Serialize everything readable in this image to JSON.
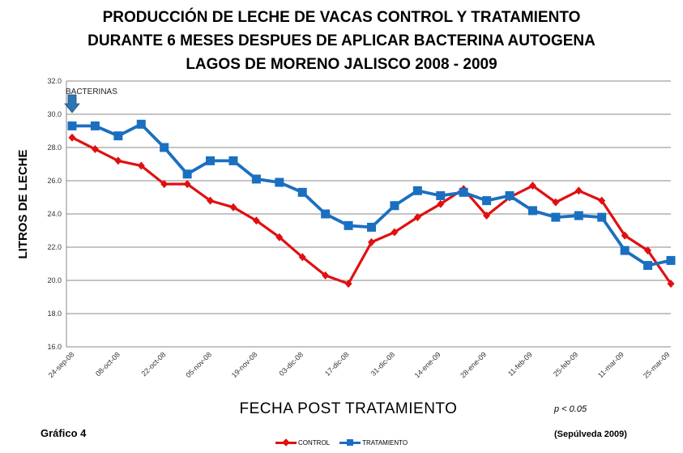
{
  "chart_data": {
    "type": "line",
    "title_lines": [
      "PRODUCCIÓN DE LECHE DE VACAS CONTROL Y TRATAMIENTO",
      "DURANTE 6 MESES DESPUES DE APLICAR BACTERINA AUTOGENA",
      "LAGOS DE MORENO JALISCO 2008 - 2009"
    ],
    "xlabel": "FECHA POST TRATAMIENTO",
    "ylabel": "LITROS DE LECHE",
    "ylim": [
      16.0,
      32.0
    ],
    "y_ticks": [
      "16.0",
      "18.0",
      "20.0",
      "22.0",
      "24.0",
      "26.0",
      "28.0",
      "30.0",
      "32.0"
    ],
    "grid": true,
    "legend_position": "bottom",
    "x_tick_labels": [
      "24-sep-08",
      "08-oct-08",
      "22-oct-08",
      "05-nov-08",
      "19-nov-08",
      "03-dic-08",
      "17-dic-08",
      "31-dic-08",
      "14-ene-09",
      "28-ene-09",
      "11-feb-09",
      "25-feb-09",
      "11-mar-09",
      "25-mar-09"
    ],
    "series": [
      {
        "name": "CONTROL",
        "color": "#e01010",
        "marker": "diamond",
        "values": [
          28.6,
          27.9,
          27.2,
          26.9,
          25.8,
          25.8,
          24.8,
          24.4,
          23.6,
          22.6,
          21.4,
          20.3,
          19.8,
          22.3,
          22.9,
          23.8,
          24.6,
          25.5,
          23.9,
          25.0,
          25.7,
          24.7,
          25.4,
          24.8,
          22.7,
          21.8,
          19.8
        ]
      },
      {
        "name": "TRATAMIENTO",
        "color": "#1a6fc0",
        "marker": "square",
        "values": [
          29.3,
          29.3,
          28.7,
          29.4,
          28.0,
          26.4,
          27.2,
          27.2,
          26.1,
          25.9,
          25.3,
          24.0,
          23.3,
          23.2,
          24.5,
          25.4,
          25.1,
          25.3,
          24.8,
          25.1,
          24.2,
          23.8,
          23.9,
          23.8,
          21.8,
          20.9,
          21.2
        ]
      }
    ],
    "annotation": {
      "text": "BACTERINAS",
      "arrow_color": "#2e75b6",
      "arrow_x_index": 0
    }
  },
  "figure_label": "Gráfico 4",
  "p_value_note": "p  < 0.05",
  "source": "(Sepúlveda 2009)"
}
